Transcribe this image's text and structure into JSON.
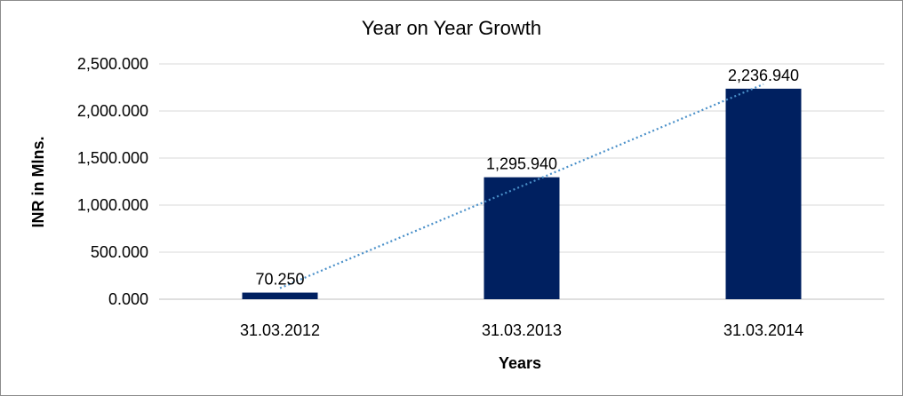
{
  "chart_data": {
    "type": "bar",
    "title": "Year on Year Growth",
    "xlabel": "Years",
    "ylabel": "INR in Mlns.",
    "categories": [
      "31.03.2012",
      "31.03.2013",
      "31.03.2014"
    ],
    "values": [
      70.25,
      1295.94,
      2236.94
    ],
    "data_labels": [
      "70.250",
      "1,295.940",
      "2,236.940"
    ],
    "ylim": [
      0,
      2500
    ],
    "yticks": [
      0,
      500,
      1000,
      1500,
      2000,
      2500
    ],
    "ytick_labels": [
      "0.000",
      "500.000",
      "1,000.000",
      "1,500.000",
      "2,000.000",
      "2,500.000"
    ],
    "grid": true,
    "legend": "none",
    "trendline": "linear",
    "bar_color": "#002060",
    "trendline_color": "#4a90c9"
  }
}
